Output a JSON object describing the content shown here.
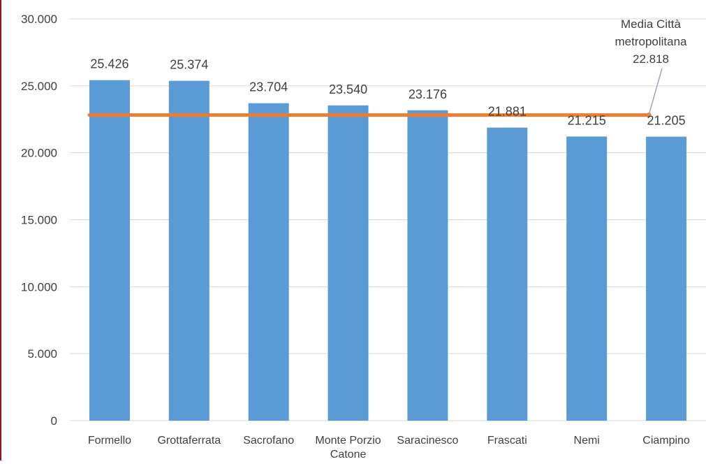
{
  "chart_data": {
    "type": "bar",
    "categories": [
      "Formello",
      "Grottaferrata",
      "Sacrofano",
      "Monte Porzio Catone",
      "Saracinesco",
      "Frascati",
      "Nemi",
      "Ciampino"
    ],
    "category_labels": [
      [
        "Formello"
      ],
      [
        "Grottaferrata"
      ],
      [
        "Sacrofano"
      ],
      [
        "Monte Porzio",
        "Catone"
      ],
      [
        "Saracinesco"
      ],
      [
        "Frascati"
      ],
      [
        "Nemi"
      ],
      [
        "Ciampino"
      ]
    ],
    "values": [
      25426,
      25374,
      23704,
      23540,
      23176,
      21881,
      21215,
      21205
    ],
    "value_labels": [
      "25.426",
      "25.374",
      "23.704",
      "23.540",
      "23.176",
      "21.881",
      "21.215",
      "21.205"
    ],
    "ylim": [
      0,
      30000
    ],
    "y_ticks": [
      0,
      5000,
      10000,
      15000,
      20000,
      25000,
      30000
    ],
    "y_tick_labels": [
      "0",
      "5.000",
      "10.000",
      "15.000",
      "20.000",
      "25.000",
      "30.000"
    ],
    "reference_line": {
      "value": 22818,
      "label_lines": [
        "Media Città",
        "metropolitana",
        "22.818"
      ]
    },
    "grid": true,
    "legend": "none",
    "colors": {
      "bar": "#5b9bd5",
      "reference_line": "#ed7d31",
      "grid": "#d9d9d9",
      "text": "#404040"
    }
  }
}
